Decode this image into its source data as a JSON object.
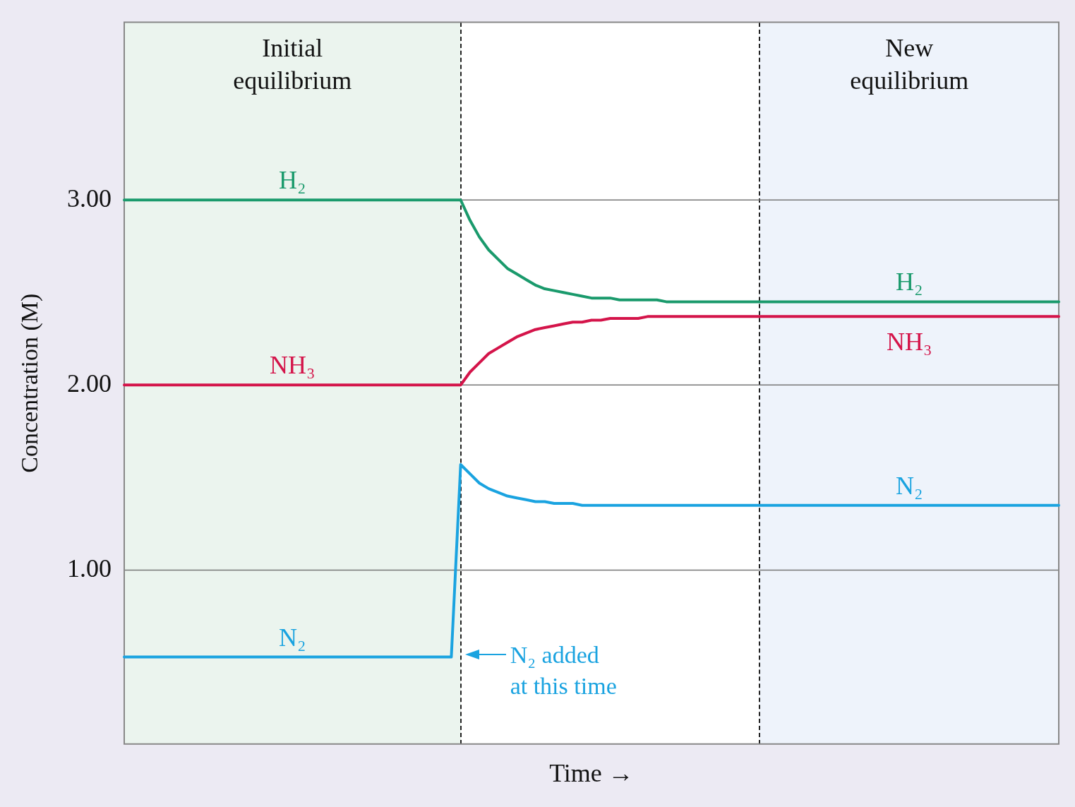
{
  "chart_data": {
    "type": "line",
    "xlabel": "Time →",
    "ylabel": "Concentration (M)",
    "categories": [
      null,
      null,
      null,
      null,
      null,
      null,
      null,
      null,
      null,
      null,
      null,
      null,
      null,
      null,
      null,
      null,
      null,
      null,
      null,
      null,
      null,
      null,
      null,
      null,
      null,
      null,
      null,
      null,
      null,
      null,
      null,
      null,
      null,
      null,
      null,
      null,
      null,
      null,
      null,
      null,
      null,
      null,
      null,
      null,
      null,
      null,
      null,
      null,
      null,
      null,
      null,
      null,
      null,
      null,
      null,
      null,
      null,
      null,
      null,
      null,
      null,
      null,
      null,
      null,
      null,
      null,
      null,
      null,
      null,
      null,
      null,
      null,
      null,
      null,
      null,
      null,
      null,
      null,
      null,
      null,
      null,
      null,
      null,
      null,
      null,
      null,
      null,
      null,
      null,
      null,
      null,
      null,
      null,
      null,
      null,
      null,
      null,
      null,
      null,
      null,
      null
    ],
    "ylim": [
      0.06,
      3.96
    ],
    "yticks": [
      {
        "value": 1,
        "label": "1.00"
      },
      {
        "value": 2,
        "label": "2.00"
      },
      {
        "value": 3,
        "label": "3.00"
      }
    ],
    "tick_labels": "y",
    "grid": "y",
    "legend": false,
    "marker": "none",
    "line_style": "solid",
    "series": [
      {
        "name": "H₂",
        "color": "#1a9a6c",
        "values": [
          3,
          3,
          3,
          3,
          3,
          3,
          3,
          3,
          3,
          3,
          3,
          3,
          3,
          3,
          3,
          3,
          3,
          3,
          3,
          3,
          3,
          3,
          3,
          3,
          3,
          3,
          3,
          3,
          3,
          3,
          3,
          3,
          3,
          3,
          3,
          3,
          3,
          2.89,
          2.8,
          2.73,
          2.68,
          2.63,
          2.6,
          2.57,
          2.54,
          2.52,
          2.51,
          2.5,
          2.49,
          2.48,
          2.47,
          2.47,
          2.47,
          2.46,
          2.46,
          2.46,
          2.46,
          2.46,
          2.45,
          2.45,
          2.45,
          2.45,
          2.45,
          2.45,
          2.45,
          2.45,
          2.45,
          2.45,
          2.45,
          2.45,
          2.45,
          2.45,
          2.45,
          2.45,
          2.45,
          2.45,
          2.45,
          2.45,
          2.45,
          2.45,
          2.45,
          2.45,
          2.45,
          2.45,
          2.45,
          2.45,
          2.45,
          2.45,
          2.45,
          2.45,
          2.45,
          2.45,
          2.45,
          2.45,
          2.45,
          2.45,
          2.45,
          2.45,
          2.45,
          2.45,
          2.45
        ]
      },
      {
        "name": "NH₃",
        "color": "#d4144a",
        "values": [
          2,
          2,
          2,
          2,
          2,
          2,
          2,
          2,
          2,
          2,
          2,
          2,
          2,
          2,
          2,
          2,
          2,
          2,
          2,
          2,
          2,
          2,
          2,
          2,
          2,
          2,
          2,
          2,
          2,
          2,
          2,
          2,
          2,
          2,
          2,
          2,
          2,
          2.07,
          2.12,
          2.17,
          2.2,
          2.23,
          2.26,
          2.28,
          2.3,
          2.31,
          2.32,
          2.33,
          2.34,
          2.34,
          2.35,
          2.35,
          2.36,
          2.36,
          2.36,
          2.36,
          2.37,
          2.37,
          2.37,
          2.37,
          2.37,
          2.37,
          2.37,
          2.37,
          2.37,
          2.37,
          2.37,
          2.37,
          2.37,
          2.37,
          2.37,
          2.37,
          2.37,
          2.37,
          2.37,
          2.37,
          2.37,
          2.37,
          2.37,
          2.37,
          2.37,
          2.37,
          2.37,
          2.37,
          2.37,
          2.37,
          2.37,
          2.37,
          2.37,
          2.37,
          2.37,
          2.37,
          2.37,
          2.37,
          2.37,
          2.37,
          2.37,
          2.37,
          2.37,
          2.37,
          2.37
        ]
      },
      {
        "name": "N₂",
        "color": "#1aa3e0",
        "values": [
          0.53,
          0.53,
          0.53,
          0.53,
          0.53,
          0.53,
          0.53,
          0.53,
          0.53,
          0.53,
          0.53,
          0.53,
          0.53,
          0.53,
          0.53,
          0.53,
          0.53,
          0.53,
          0.53,
          0.53,
          0.53,
          0.53,
          0.53,
          0.53,
          0.53,
          0.53,
          0.53,
          0.53,
          0.53,
          0.53,
          0.53,
          0.53,
          0.53,
          0.53,
          0.53,
          0.53,
          1.57,
          1.52,
          1.47,
          1.44,
          1.42,
          1.4,
          1.39,
          1.38,
          1.37,
          1.37,
          1.36,
          1.36,
          1.36,
          1.35,
          1.35,
          1.35,
          1.35,
          1.35,
          1.35,
          1.35,
          1.35,
          1.35,
          1.35,
          1.35,
          1.35,
          1.35,
          1.35,
          1.35,
          1.35,
          1.35,
          1.35,
          1.35,
          1.35,
          1.35,
          1.35,
          1.35,
          1.35,
          1.35,
          1.35,
          1.35,
          1.35,
          1.35,
          1.35,
          1.35,
          1.35,
          1.35,
          1.35,
          1.35,
          1.35,
          1.35,
          1.35,
          1.35,
          1.35,
          1.35,
          1.35,
          1.35,
          1.35,
          1.35,
          1.35,
          1.35,
          1.35,
          1.35,
          1.35,
          1.35,
          1.35
        ]
      }
    ],
    "annotations": [
      "Initial equilibrium",
      "New equilibrium",
      "N₂ added at this time"
    ]
  }
}
